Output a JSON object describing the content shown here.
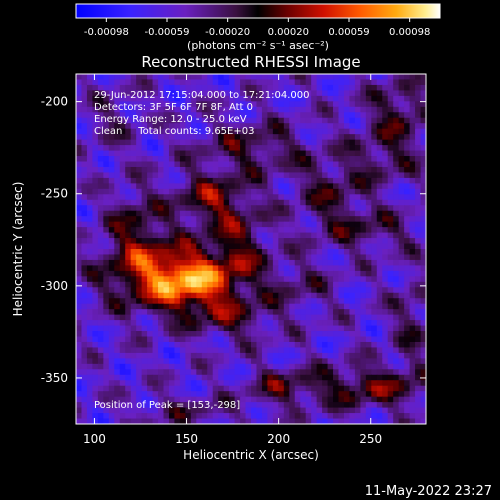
{
  "chart_data": {
    "type": "heatmap",
    "title": "Reconstructed RHESSI Image",
    "xlabel": "Heliocentric X (arcsec)",
    "ylabel": "Heliocentric Y (arcsec)",
    "xlim": [
      90,
      280
    ],
    "ylim": [
      -375,
      -185
    ],
    "x_ticks": [
      100,
      150,
      200,
      250
    ],
    "y_ticks": [
      -200,
      -250,
      -300,
      -350
    ],
    "colorbar": {
      "ticks": [
        "-0.00098",
        "-0.00059",
        "-0.00020",
        "0.00020",
        "0.00059",
        "0.00098"
      ],
      "range": [
        -0.00098,
        0.00098
      ],
      "unit_label": "(photons cm⁻² s⁻¹ asec⁻²)"
    },
    "annotations": [
      "29-Jun-2012 17:15:04.000 to 17:21:04.000",
      "Detectors: 3F 5F 6F 7F 8F, Att 0",
      "Energy Range: 12.0 - 25.0 keV",
      "Clean     Total counts: 9.65E+03"
    ],
    "peak_text": "Position of Peak = [153,-298]",
    "peak_position": [
      153,
      -298
    ],
    "emission_sources": [
      {
        "x": 153,
        "y": -298,
        "sx": 16,
        "sy": 11,
        "amp": 0.00095
      },
      {
        "x": 128,
        "y": -292,
        "sx": 18,
        "sy": 14,
        "amp": 0.00062
      },
      {
        "x": 178,
        "y": -280,
        "sx": 12,
        "sy": 16,
        "amp": 0.00045
      },
      {
        "x": 163,
        "y": -253,
        "sx": 14,
        "sy": 10,
        "amp": 0.00052
      },
      {
        "x": 122,
        "y": -265,
        "sx": 10,
        "sy": 14,
        "amp": 0.00035
      },
      {
        "x": 185,
        "y": -225,
        "sx": 20,
        "sy": 10,
        "amp": 0.00038
      },
      {
        "x": 110,
        "y": -210,
        "sx": 10,
        "sy": 12,
        "amp": 0.0002
      },
      {
        "x": 175,
        "y": -318,
        "sx": 16,
        "sy": 8,
        "amp": 0.00035
      },
      {
        "x": 228,
        "y": -250,
        "sx": 14,
        "sy": 14,
        "amp": 0.00035
      },
      {
        "x": 258,
        "y": -230,
        "sx": 14,
        "sy": 10,
        "amp": 0.0003
      },
      {
        "x": 265,
        "y": -205,
        "sx": 12,
        "sy": 12,
        "amp": 0.0004
      },
      {
        "x": 250,
        "y": -270,
        "sx": 18,
        "sy": 8,
        "amp": 0.0003
      },
      {
        "x": 248,
        "y": -355,
        "sx": 26,
        "sy": 8,
        "amp": 0.0005
      },
      {
        "x": 272,
        "y": -320,
        "sx": 8,
        "sy": 18,
        "amp": 0.00028
      },
      {
        "x": 200,
        "y": -355,
        "sx": 12,
        "sy": 7,
        "amp": 0.00033
      },
      {
        "x": 150,
        "y": -368,
        "sx": 20,
        "sy": 6,
        "amp": 0.00025
      },
      {
        "x": 210,
        "y": -300,
        "sx": 14,
        "sy": 10,
        "amp": 0.00025
      }
    ],
    "colormap": "red-temperature (blue -> purple -> red -> orange -> white)"
  },
  "footer": {
    "timestamp": "11-May-2022 23:27"
  }
}
